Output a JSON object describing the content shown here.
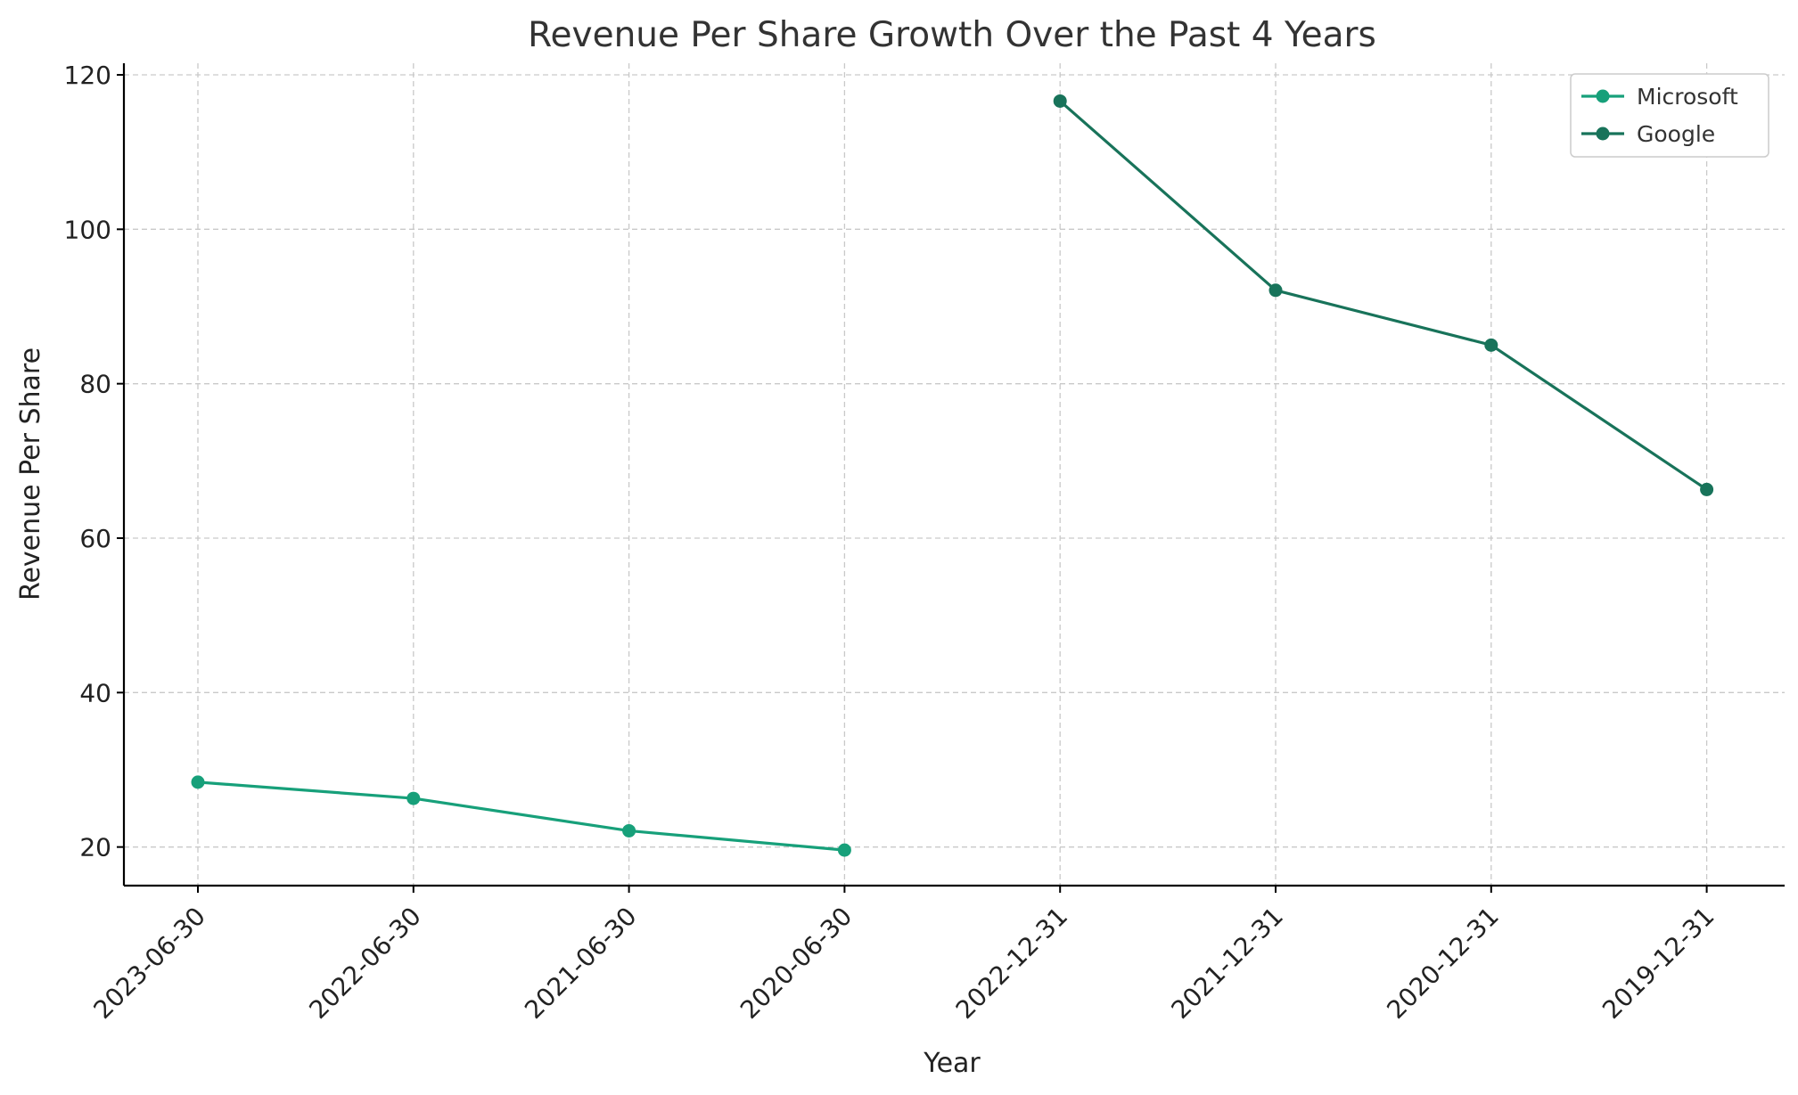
{
  "chart_data": {
    "type": "line",
    "title": "Revenue Per Share Growth Over the Past 4 Years",
    "xlabel": "Year",
    "ylabel": "Revenue Per Share",
    "categories": [
      "2023-06-30",
      "2022-06-30",
      "2021-06-30",
      "2020-06-30",
      "2022-12-31",
      "2021-12-31",
      "2020-12-31",
      "2019-12-31"
    ],
    "ylim": [
      15,
      121.5
    ],
    "yticks": [
      20,
      40,
      60,
      80,
      100,
      120
    ],
    "grid": true,
    "legend_position": "top-right",
    "series": [
      {
        "name": "Microsoft",
        "color": "#17a07a",
        "x": [
          "2023-06-30",
          "2022-06-30",
          "2021-06-30",
          "2020-06-30"
        ],
        "values": [
          28.4,
          26.3,
          22.1,
          19.6
        ]
      },
      {
        "name": "Google",
        "color": "#18735a",
        "x": [
          "2022-12-31",
          "2021-12-31",
          "2020-12-31",
          "2019-12-31"
        ],
        "values": [
          116.6,
          92.1,
          85.0,
          66.3
        ]
      }
    ]
  }
}
